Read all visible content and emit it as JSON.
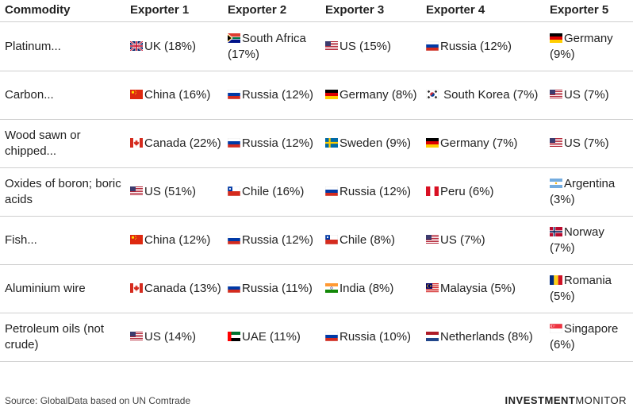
{
  "headers": [
    "Commodity",
    "Exporter 1",
    "Exporter 2",
    "Exporter 3",
    "Exporter 4",
    "Exporter 5"
  ],
  "rows": [
    {
      "commodity": "Platinum...",
      "exporters": [
        {
          "flag": "uk-flag-icon",
          "text": "UK (18%)"
        },
        {
          "flag": "south-africa-flag-icon",
          "text": "South Africa (17%)"
        },
        {
          "flag": "us-flag-icon",
          "text": "US (15%)"
        },
        {
          "flag": "russia-flag-icon",
          "text": "Russia (12%)"
        },
        {
          "flag": "germany-flag-icon",
          "text": "Germany (9%)"
        }
      ]
    },
    {
      "commodity": "Carbon...",
      "exporters": [
        {
          "flag": "china-flag-icon",
          "text": "China (16%)"
        },
        {
          "flag": "russia-flag-icon",
          "text": "Russia (12%)"
        },
        {
          "flag": "germany-flag-icon",
          "text": "Germany (8%)"
        },
        {
          "flag": "south-korea-flag-icon",
          "text": " South Korea (7%)"
        },
        {
          "flag": "us-flag-icon",
          "text": "US (7%)"
        }
      ]
    },
    {
      "commodity": "Wood sawn or chipped...",
      "exporters": [
        {
          "flag": "canada-flag-icon",
          "text": "Canada (22%)"
        },
        {
          "flag": "russia-flag-icon",
          "text": "Russia (12%)"
        },
        {
          "flag": "sweden-flag-icon",
          "text": "Sweden (9%)"
        },
        {
          "flag": "germany-flag-icon",
          "text": "Germany (7%)"
        },
        {
          "flag": "us-flag-icon",
          "text": "US (7%)"
        }
      ]
    },
    {
      "commodity": "Oxides of boron; boric acids",
      "exporters": [
        {
          "flag": "us-flag-icon",
          "text": "US (51%)"
        },
        {
          "flag": "chile-flag-icon",
          "text": "Chile (16%)"
        },
        {
          "flag": "russia-flag-icon",
          "text": "Russia (12%)"
        },
        {
          "flag": "peru-flag-icon",
          "text": "Peru (6%)"
        },
        {
          "flag": "argentina-flag-icon",
          "text": "Argentina (3%)"
        }
      ]
    },
    {
      "commodity": "Fish...",
      "exporters": [
        {
          "flag": "china-flag-icon",
          "text": "China (12%)"
        },
        {
          "flag": "russia-flag-icon",
          "text": "Russia (12%)"
        },
        {
          "flag": "chile-flag-icon",
          "text": "Chile (8%)"
        },
        {
          "flag": "us-flag-icon",
          "text": "US (7%)"
        },
        {
          "flag": "norway-flag-icon",
          "text": "Norway (7%)"
        }
      ]
    },
    {
      "commodity": "Aluminium wire",
      "exporters": [
        {
          "flag": "canada-flag-icon",
          "text": "Canada (13%)"
        },
        {
          "flag": "russia-flag-icon",
          "text": "Russia (11%)"
        },
        {
          "flag": "india-flag-icon",
          "text": "India (8%)"
        },
        {
          "flag": "malaysia-flag-icon",
          "text": "Malaysia (5%)"
        },
        {
          "flag": "romania-flag-icon",
          "text": "Romania (5%)"
        }
      ]
    },
    {
      "commodity": "Petroleum oils (not crude)",
      "exporters": [
        {
          "flag": "us-flag-icon",
          "text": "US (14%)"
        },
        {
          "flag": "uae-flag-icon",
          "text": "UAE (11%)"
        },
        {
          "flag": "russia-flag-icon",
          "text": "Russia (10%)"
        },
        {
          "flag": "netherlands-flag-icon",
          "text": "Netherlands (8%)"
        },
        {
          "flag": "singapore-flag-icon",
          "text": "Singapore (6%)"
        }
      ]
    }
  ],
  "footer": {
    "source": "Source: GlobalData based on UN Comtrade",
    "logo_bold": "INVESTMENT",
    "logo_regular": "MONITOR"
  }
}
